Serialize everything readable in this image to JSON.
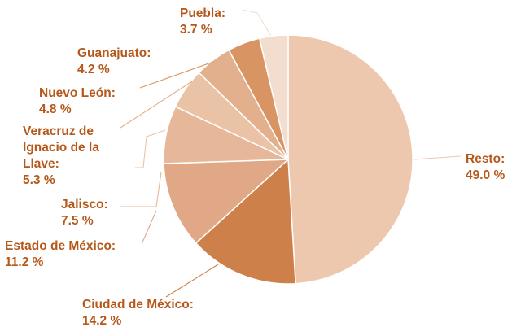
{
  "chart_data": {
    "type": "pie",
    "title": "",
    "start": "12 o'clock, clockwise",
    "slices": [
      {
        "name": "Resto",
        "value": 49.0,
        "value_label": "49.0 %",
        "label_lines": [
          "Resto:"
        ],
        "color": "#eec8ae"
      },
      {
        "name": "Ciudad de México",
        "value": 14.2,
        "value_label": "14.2 %",
        "label_lines": [
          "Ciudad de México:"
        ],
        "color": "#cd8049"
      },
      {
        "name": "Estado de México",
        "value": 11.2,
        "value_label": "11.2 %",
        "label_lines": [
          "Estado de México:"
        ],
        "color": "#e0a886"
      },
      {
        "name": "Jalisco",
        "value": 7.5,
        "value_label": "7.5 %",
        "label_lines": [
          "Jalisco:"
        ],
        "color": "#e6b899"
      },
      {
        "name": "Veracruz de Ignacio de la Llave",
        "value": 5.3,
        "value_label": "5.3 %",
        "label_lines": [
          "Veracruz de",
          "Ignacio de la",
          "Llave:"
        ],
        "color": "#eac3a7"
      },
      {
        "name": "Nuevo León",
        "value": 4.8,
        "value_label": "4.8 %",
        "label_lines": [
          "Nuevo León:"
        ],
        "color": "#e3b08d"
      },
      {
        "name": "Guanajuato",
        "value": 4.2,
        "value_label": "4.2 %",
        "label_lines": [
          "Guanajuato:"
        ],
        "color": "#d99464"
      },
      {
        "name": "Puebla",
        "value": 3.7,
        "value_label": "3.7 %",
        "label_lines": [
          "Puebla:"
        ],
        "color": "#f2ddcf"
      }
    ],
    "label_color": "#b5581a"
  }
}
